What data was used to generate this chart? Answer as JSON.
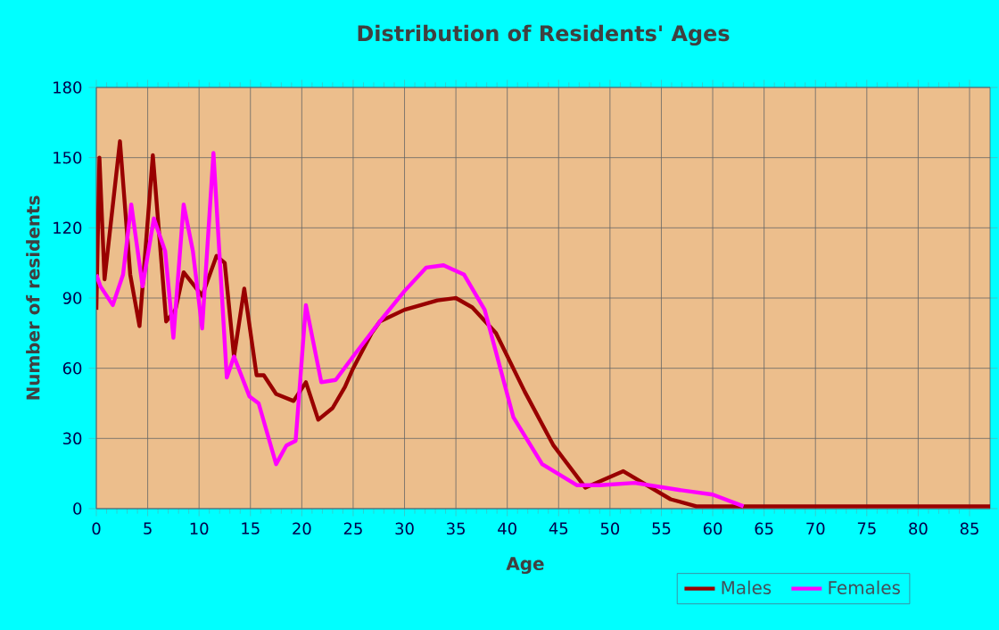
{
  "chart_data": {
    "type": "line",
    "title": "Distribution of Residents' Ages",
    "xlabel": "Age",
    "ylabel": "Number of residents",
    "xlim": [
      0,
      87
    ],
    "xticks": [
      0,
      5,
      10,
      15,
      20,
      25,
      30,
      35,
      40,
      45,
      50,
      55,
      60,
      65,
      70,
      75,
      80,
      85
    ],
    "ylim": [
      0,
      180
    ],
    "yticks": [
      0,
      30,
      60,
      90,
      120,
      150,
      180
    ],
    "grid": true,
    "legend": "bottom",
    "marker": "none",
    "line_style": "solid",
    "series": [
      {
        "name": "Males",
        "color": "#990000",
        "x": [
          0,
          0.3,
          0.8,
          2.3,
          3.3,
          4.2,
          5.5,
          6.8,
          7.7,
          8.5,
          10.3,
          11.7,
          12.5,
          13.4,
          14.4,
          15.6,
          16.3,
          17.5,
          19.2,
          20.4,
          21.6,
          23,
          24.2,
          25,
          26.8,
          27.6,
          30,
          33.2,
          35,
          36.6,
          38.9,
          41.7,
          44.5,
          47.6,
          51.3,
          53.6,
          55.9,
          58.4,
          65,
          70,
          75,
          80,
          87
        ],
        "values": [
          85,
          150,
          98,
          157,
          100,
          78,
          151,
          80,
          85,
          101,
          91,
          108,
          105,
          65,
          94,
          57,
          57,
          49,
          46,
          54,
          38,
          43,
          52,
          60,
          75,
          80,
          85,
          89,
          90,
          86,
          75,
          50,
          27,
          9,
          16,
          10,
          4,
          1,
          1,
          1,
          1,
          1,
          1
        ]
      },
      {
        "name": "Females",
        "color": "#ff00ff",
        "x": [
          0,
          0.4,
          1.6,
          2.6,
          3.4,
          4.5,
          5.6,
          6.7,
          7.5,
          8.5,
          9.4,
          10.3,
          11.4,
          12.7,
          13.4,
          14.9,
          15.8,
          17.5,
          18.5,
          19.4,
          20.4,
          21.9,
          23.3,
          25,
          27.6,
          30,
          32.1,
          33.8,
          35.8,
          37.8,
          40.6,
          43.4,
          46.8,
          49,
          52.4,
          56.7,
          60,
          63
        ],
        "values": [
          100,
          95,
          87,
          100,
          130,
          95,
          124,
          110,
          73,
          130,
          110,
          77,
          152,
          56,
          65,
          48,
          45,
          19,
          27,
          29,
          87,
          54,
          55,
          65,
          80,
          93,
          103,
          104,
          100,
          85,
          39,
          19,
          10,
          10,
          11,
          8,
          6,
          1
        ]
      }
    ]
  }
}
